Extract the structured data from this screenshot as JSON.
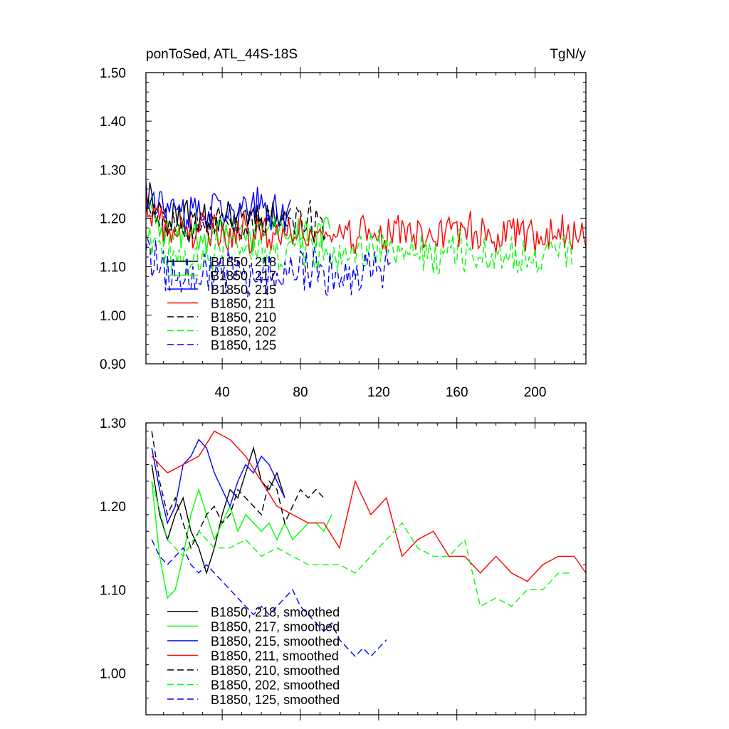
{
  "chart_data": [
    {
      "type": "line",
      "title_left": "ponToSed, ATL_44S-18S",
      "title_right": "TgN/y",
      "xlim": [
        1,
        226
      ],
      "ylim": [
        0.9,
        1.5
      ],
      "xticks": [
        40,
        80,
        120,
        160,
        200
      ],
      "xtick_labels": [
        "40",
        "80",
        "120",
        "160",
        "200"
      ],
      "yticks": [
        0.9,
        1.0,
        1.1,
        1.2,
        1.3,
        1.4,
        1.5
      ],
      "ytick_labels": [
        "0.90",
        "1.00",
        "1.10",
        "1.20",
        "1.30",
        "1.40",
        "1.50"
      ],
      "legend_placement": "lower-left",
      "series": [
        {
          "name": "B1850, 218",
          "color": "#000000",
          "dash": "solid",
          "start": 1,
          "end": 75,
          "base": 1.205,
          "amp": 0.055,
          "seed": 11
        },
        {
          "name": "B1850, 217",
          "color": "#00ff00",
          "dash": "solid",
          "start": 1,
          "end": 95,
          "base": 1.17,
          "amp": 0.05,
          "seed": 23
        },
        {
          "name": "B1850, 215",
          "color": "#0000ff",
          "dash": "solid",
          "start": 1,
          "end": 75,
          "base": 1.215,
          "amp": 0.06,
          "seed": 37
        },
        {
          "name": "B1850, 211",
          "color": "#ff0000",
          "dash": "solid",
          "start": 1,
          "end": 226,
          "base": 1.17,
          "amp": 0.06,
          "seed": 41
        },
        {
          "name": "B1850, 210",
          "color": "#000000",
          "dash": "dashed",
          "start": 1,
          "end": 94,
          "base": 1.19,
          "amp": 0.055,
          "seed": 53
        },
        {
          "name": "B1850, 202",
          "color": "#00ff00",
          "dash": "dashed",
          "start": 1,
          "end": 219,
          "base": 1.13,
          "amp": 0.06,
          "seed": 67
        },
        {
          "name": "B1850, 125",
          "color": "#0000ff",
          "dash": "dashed",
          "start": 1,
          "end": 126,
          "base": 1.09,
          "amp": 0.075,
          "seed": 79
        }
      ]
    },
    {
      "type": "line",
      "xlim": [
        1,
        226
      ],
      "ylim": [
        0.95,
        1.3
      ],
      "xticks": [
        40,
        80,
        120,
        160,
        200
      ],
      "yticks": [
        1.0,
        1.1,
        1.2,
        1.3
      ],
      "ytick_labels": [
        "1.00",
        "1.10",
        "1.20",
        "1.30"
      ],
      "legend_placement": "lower-left",
      "series": [
        {
          "name": "B1850, 218, smoothed",
          "color": "#000000",
          "dash": "solid",
          "x": [
            4,
            8,
            12,
            16,
            20,
            24,
            28,
            32,
            36,
            40,
            44,
            48,
            52,
            56,
            60,
            64,
            68,
            72
          ],
          "y": [
            1.25,
            1.19,
            1.16,
            1.19,
            1.21,
            1.17,
            1.15,
            1.12,
            1.15,
            1.19,
            1.22,
            1.21,
            1.24,
            1.27,
            1.23,
            1.22,
            1.24,
            1.21
          ]
        },
        {
          "name": "B1850, 217, smoothed",
          "color": "#00ff00",
          "dash": "solid",
          "x": [
            4,
            8,
            12,
            16,
            20,
            24,
            28,
            32,
            36,
            40,
            44,
            48,
            52,
            56,
            60,
            64,
            68,
            72,
            76,
            80,
            84,
            88,
            92,
            96
          ],
          "y": [
            1.23,
            1.14,
            1.09,
            1.1,
            1.14,
            1.19,
            1.22,
            1.19,
            1.16,
            1.18,
            1.2,
            1.17,
            1.19,
            1.18,
            1.17,
            1.18,
            1.16,
            1.18,
            1.16,
            1.17,
            1.18,
            1.18,
            1.17,
            1.19
          ]
        },
        {
          "name": "B1850, 215, smoothed",
          "color": "#0000ff",
          "dash": "solid",
          "x": [
            4,
            8,
            12,
            16,
            20,
            24,
            28,
            32,
            36,
            40,
            44,
            48,
            52,
            56,
            60,
            64,
            68,
            72
          ],
          "y": [
            1.27,
            1.22,
            1.18,
            1.2,
            1.25,
            1.26,
            1.28,
            1.27,
            1.24,
            1.22,
            1.2,
            1.23,
            1.25,
            1.24,
            1.26,
            1.25,
            1.23,
            1.21
          ]
        },
        {
          "name": "B1850, 211, smoothed",
          "color": "#ff0000",
          "dash": "solid",
          "x": [
            4,
            12,
            20,
            28,
            36,
            44,
            52,
            60,
            68,
            76,
            84,
            92,
            100,
            108,
            116,
            124,
            132,
            140,
            148,
            156,
            164,
            172,
            180,
            188,
            196,
            204,
            212,
            220,
            226
          ],
          "y": [
            1.26,
            1.24,
            1.25,
            1.26,
            1.29,
            1.28,
            1.26,
            1.23,
            1.2,
            1.19,
            1.18,
            1.18,
            1.15,
            1.23,
            1.19,
            1.21,
            1.14,
            1.16,
            1.17,
            1.14,
            1.14,
            1.12,
            1.14,
            1.12,
            1.11,
            1.13,
            1.14,
            1.14,
            1.12
          ]
        },
        {
          "name": "B1850, 210, smoothed",
          "color": "#000000",
          "dash": "dashed",
          "x": [
            4,
            8,
            12,
            16,
            20,
            24,
            28,
            32,
            36,
            40,
            44,
            48,
            52,
            56,
            60,
            64,
            68,
            72,
            76,
            80,
            84,
            88,
            92
          ],
          "y": [
            1.29,
            1.23,
            1.19,
            1.21,
            1.18,
            1.15,
            1.17,
            1.19,
            1.2,
            1.18,
            1.19,
            1.22,
            1.21,
            1.2,
            1.19,
            1.23,
            1.22,
            1.18,
            1.2,
            1.22,
            1.21,
            1.22,
            1.21
          ]
        },
        {
          "name": "B1850, 202, smoothed",
          "color": "#00ff00",
          "dash": "dashed",
          "x": [
            4,
            12,
            20,
            28,
            36,
            44,
            52,
            60,
            68,
            76,
            84,
            92,
            100,
            108,
            116,
            124,
            132,
            140,
            148,
            156,
            164,
            172,
            180,
            188,
            196,
            204,
            212,
            218
          ],
          "y": [
            1.23,
            1.16,
            1.14,
            1.17,
            1.15,
            1.15,
            1.16,
            1.14,
            1.15,
            1.14,
            1.13,
            1.13,
            1.13,
            1.12,
            1.14,
            1.16,
            1.18,
            1.15,
            1.14,
            1.14,
            1.16,
            1.08,
            1.09,
            1.08,
            1.1,
            1.1,
            1.12,
            1.12
          ]
        },
        {
          "name": "B1850, 125, smoothed",
          "color": "#0000ff",
          "dash": "dashed",
          "x": [
            4,
            8,
            12,
            16,
            20,
            24,
            28,
            32,
            36,
            40,
            44,
            48,
            52,
            56,
            60,
            64,
            68,
            72,
            76,
            80,
            84,
            88,
            92,
            96,
            100,
            104,
            108,
            112,
            116,
            120,
            124
          ],
          "y": [
            1.16,
            1.14,
            1.13,
            1.14,
            1.15,
            1.13,
            1.12,
            1.13,
            1.12,
            1.11,
            1.1,
            1.09,
            1.08,
            1.07,
            1.08,
            1.07,
            1.08,
            1.09,
            1.1,
            1.08,
            1.07,
            1.06,
            1.05,
            1.06,
            1.04,
            1.03,
            1.02,
            1.03,
            1.02,
            1.03,
            1.04
          ]
        }
      ]
    }
  ]
}
